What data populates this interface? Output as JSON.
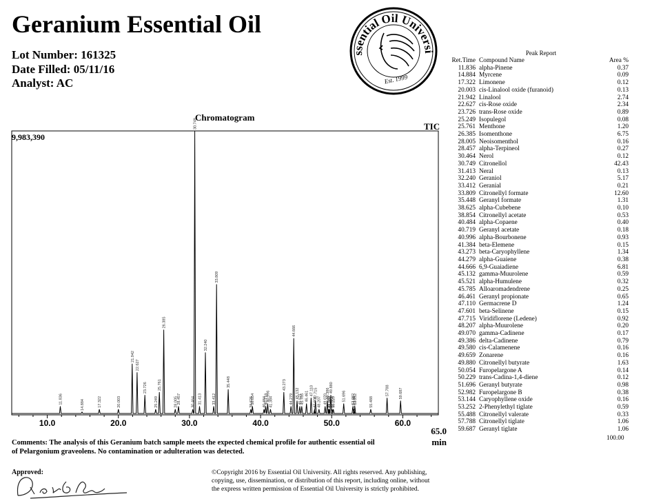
{
  "header": {
    "title": "Geranium Essential Oil",
    "lot": "Lot Number: 161325",
    "date": "Date Filled: 05/11/16",
    "analyst": "Analyst: AC"
  },
  "logo": {
    "top_text": "Essential Oil University",
    "bottom_text": "Est. 1999"
  },
  "chromatogram": {
    "title": "Chromatogram",
    "tic": "TIC",
    "ymax_label": "9,983,390",
    "x_end_label": "65.0",
    "x_unit": "min"
  },
  "chart_data": {
    "type": "line",
    "title": "Chromatogram",
    "xlabel": "min",
    "ylabel": "",
    "xlim": [
      5,
      65
    ],
    "ylim": [
      0,
      9983390
    ],
    "xticks": [
      "10.0",
      "20.0",
      "30.0",
      "40.0",
      "50.0",
      "60.0",
      "65.0"
    ],
    "peaks": [
      {
        "rt": 11.836,
        "h": 0.03,
        "label": "11.836"
      },
      {
        "rt": 14.884,
        "h": 0.01,
        "label": "14.884"
      },
      {
        "rt": 17.322,
        "h": 0.02,
        "label": "17.322"
      },
      {
        "rt": 20.003,
        "h": 0.02,
        "label": "20.003"
      },
      {
        "rt": 21.942,
        "h": 0.18,
        "label": "21.942"
      },
      {
        "rt": 22.627,
        "h": 0.15,
        "label": "22.627"
      },
      {
        "rt": 23.726,
        "h": 0.07,
        "label": "23.726"
      },
      {
        "rt": 25.249,
        "h": 0.02,
        "label": "25.249"
      },
      {
        "rt": 25.761,
        "h": 0.08,
        "label": "25.761"
      },
      {
        "rt": 26.385,
        "h": 0.3,
        "label": "26.385"
      },
      {
        "rt": 28.005,
        "h": 0.02,
        "label": "28.005"
      },
      {
        "rt": 28.457,
        "h": 0.03,
        "label": "28.457"
      },
      {
        "rt": 30.464,
        "h": 0.02,
        "label": "30.464"
      },
      {
        "rt": 30.749,
        "h": 1.0,
        "label": "30.749"
      },
      {
        "rt": 31.413,
        "h": 0.03,
        "label": "31.413"
      },
      {
        "rt": 32.24,
        "h": 0.22,
        "label": "32.240"
      },
      {
        "rt": 33.412,
        "h": 0.03,
        "label": "33.412"
      },
      {
        "rt": 33.809,
        "h": 0.46,
        "label": "33.809"
      },
      {
        "rt": 35.448,
        "h": 0.09,
        "label": "35.448"
      },
      {
        "rt": 38.625,
        "h": 0.02,
        "label": "38.625"
      },
      {
        "rt": 38.854,
        "h": 0.03,
        "label": "38.854"
      },
      {
        "rt": 40.484,
        "h": 0.02,
        "label": "40.484"
      },
      {
        "rt": 40.719,
        "h": 0.03,
        "label": "40.719"
      },
      {
        "rt": 40.996,
        "h": 0.04,
        "label": "40.996"
      },
      {
        "rt": 41.384,
        "h": 0.02,
        "label": "41.384"
      },
      {
        "rt": 43.273,
        "h": 0.08,
        "label": "43.273"
      },
      {
        "rt": 44.279,
        "h": 0.03,
        "label": "44.279"
      },
      {
        "rt": 44.666,
        "h": 0.27,
        "label": "44.666"
      },
      {
        "rt": 45.132,
        "h": 0.05,
        "label": "45.132"
      },
      {
        "rt": 45.521,
        "h": 0.03,
        "label": "45.521"
      },
      {
        "rt": 45.785,
        "h": 0.03,
        "label": "45.785"
      },
      {
        "rt": 46.461,
        "h": 0.04,
        "label": "46.461"
      },
      {
        "rt": 47.11,
        "h": 0.06,
        "label": "47.110"
      },
      {
        "rt": 47.601,
        "h": 0.02,
        "label": "47.601"
      },
      {
        "rt": 47.715,
        "h": 0.05,
        "label": "47.715"
      },
      {
        "rt": 48.207,
        "h": 0.02,
        "label": "48.207"
      },
      {
        "rt": 49.07,
        "h": 0.03,
        "label": "49.070"
      },
      {
        "rt": 49.386,
        "h": 0.05,
        "label": "49.386"
      },
      {
        "rt": 49.58,
        "h": 0.02,
        "label": "49.580"
      },
      {
        "rt": 49.659,
        "h": 0.02,
        "label": "49.659"
      },
      {
        "rt": 49.88,
        "h": 0.07,
        "label": "49.880"
      },
      {
        "rt": 50.054,
        "h": 0.02,
        "label": "50.054"
      },
      {
        "rt": 50.229,
        "h": 0.02,
        "label": "50.229"
      },
      {
        "rt": 51.696,
        "h": 0.04,
        "label": "51.696"
      },
      {
        "rt": 52.982,
        "h": 0.03,
        "label": "52.982"
      },
      {
        "rt": 53.144,
        "h": 0.02,
        "label": "53.144"
      },
      {
        "rt": 53.252,
        "h": 0.03,
        "label": "53.252"
      },
      {
        "rt": 55.488,
        "h": 0.02,
        "label": "55.488"
      },
      {
        "rt": 57.788,
        "h": 0.06,
        "label": "57.788"
      },
      {
        "rt": 59.687,
        "h": 0.05,
        "label": "59.687"
      }
    ]
  },
  "peak_report": {
    "title": "Peak Report",
    "col_rt": "Ret.Time",
    "col_name": "Compound Name",
    "col_area": "Area %",
    "rows": [
      [
        "11.836",
        "alpha-Pinene",
        "0.37"
      ],
      [
        "14.884",
        "Myrcene",
        "0.09"
      ],
      [
        "17.322",
        "Limonene",
        "0.12"
      ],
      [
        "20.003",
        "cis-Linalool oxide (furanoid)",
        "0.13"
      ],
      [
        "21.942",
        "Linalool",
        "2.74"
      ],
      [
        "22.627",
        "cis-Rose oxide",
        "2.34"
      ],
      [
        "23.726",
        "trans-Rose oxide",
        "0.89"
      ],
      [
        "25.249",
        "Isopulegol",
        "0.08"
      ],
      [
        "25.761",
        "Menthone",
        "1.20"
      ],
      [
        "26.385",
        "Isomenthone",
        "6.75"
      ],
      [
        "28.005",
        "Neoisomenthol",
        "0.16"
      ],
      [
        "28.457",
        "alpha-Terpineol",
        "0.27"
      ],
      [
        "30.464",
        "Nerol",
        "0.12"
      ],
      [
        "30.749",
        "Citronellol",
        "42.43"
      ],
      [
        "31.413",
        "Neral",
        "0.13"
      ],
      [
        "32.240",
        "Geraniol",
        "5.17"
      ],
      [
        "33.412",
        "Geranial",
        "0.21"
      ],
      [
        "33.809",
        "Citronellyl formate",
        "12.60"
      ],
      [
        "35.448",
        "Geranyl formate",
        "1.31"
      ],
      [
        "38.625",
        "alpha-Cubebene",
        "0.10"
      ],
      [
        "38.854",
        "Citronellyl acetate",
        "0.53"
      ],
      [
        "40.484",
        "alpha-Copaene",
        "0.40"
      ],
      [
        "40.719",
        "Geranyl acetate",
        "0.18"
      ],
      [
        "40.996",
        "alpha-Bourbonene",
        "0.93"
      ],
      [
        "41.384",
        "beta-Elemene",
        "0.15"
      ],
      [
        "43.273",
        "beta-Caryophyllene",
        "1.34"
      ],
      [
        "44.279",
        "alpha-Guaiene",
        "0.38"
      ],
      [
        "44.666",
        "6,9-Guaiadiene",
        "6.81"
      ],
      [
        "45.132",
        "gamma-Muurolene",
        "0.59"
      ],
      [
        "45.521",
        "alpha-Humulene",
        "0.32"
      ],
      [
        "45.785",
        "Alloaromadendrene",
        "0.25"
      ],
      [
        "46.461",
        "Geranyl propionate",
        "0.65"
      ],
      [
        "47.110",
        "Germacrene D",
        "1.24"
      ],
      [
        "47.601",
        "beta-Selinene",
        "0.15"
      ],
      [
        "47.715",
        "Viridiflorene (Ledene)",
        "0.92"
      ],
      [
        "48.207",
        "alpha-Muurolene",
        "0.20"
      ],
      [
        "49.070",
        "gamma-Cadinene",
        "0.17"
      ],
      [
        "49.386",
        "delta-Cadinene",
        "0.79"
      ],
      [
        "49.580",
        "cis-Calamenene",
        "0.16"
      ],
      [
        "49.659",
        "Zonarene",
        "0.16"
      ],
      [
        "49.880",
        "Citronellyl butyrate",
        "1.63"
      ],
      [
        "50.054",
        "Furopelargone A",
        "0.14"
      ],
      [
        "50.229",
        "trans-Cadina-1,4-diene",
        "0.12"
      ],
      [
        "51.696",
        "Geranyl butyrate",
        "0.98"
      ],
      [
        "52.982",
        "Furopelargone B",
        "0.38"
      ],
      [
        "53.144",
        "Caryophyllene oxide",
        "0.16"
      ],
      [
        "53.252",
        "2-Phenylethyl tiglate",
        "0.59"
      ],
      [
        "55.488",
        "Citronellyl valerate",
        "0.33"
      ],
      [
        "57.788",
        "Citronellyl tiglate",
        "1.06"
      ],
      [
        "59.687",
        "Geranyl tiglate",
        "1.06"
      ]
    ],
    "total": "100.00"
  },
  "footer": {
    "comments_line1": "Comments: The analysis of this Geranium batch sample meets the expected chemical profile for authentic essential oil",
    "comments_line2": "of Pelargonium graveolens. No contamination or adulteration was detected.",
    "approved": "Approved:",
    "signature": "Dr. Robert S. Pappas",
    "copyright_line1": "©Copyright 2016 by Essential Oil University. All rights reserved.  Any publishing,",
    "copyright_line2": "copying, use, dissemination, or distribution of this report, including online, without",
    "copyright_line3": "the express written permission of Essential Oil University is strictly prohibited."
  }
}
